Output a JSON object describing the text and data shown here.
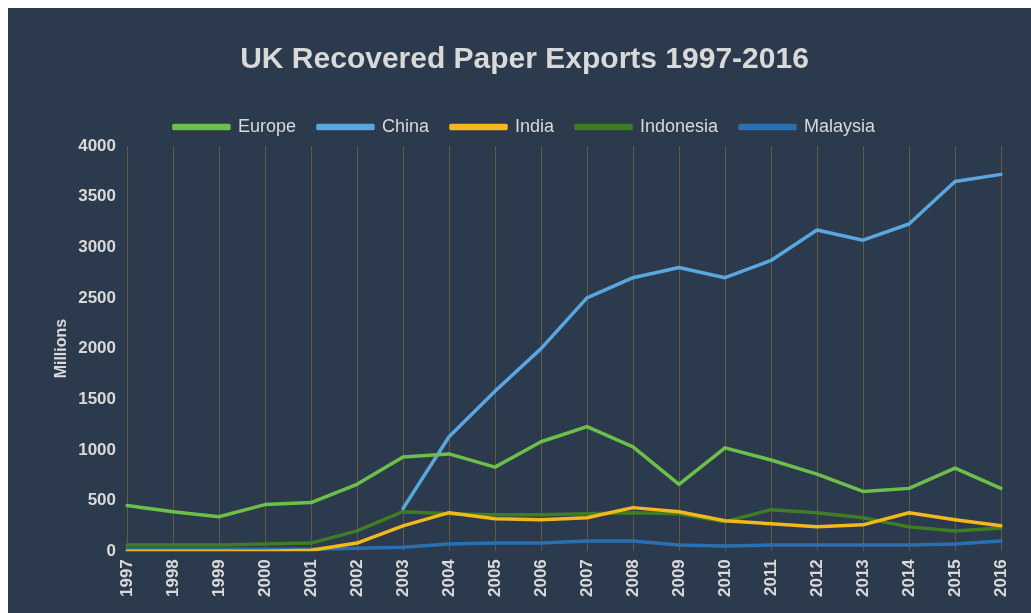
{
  "chart_data": {
    "type": "line",
    "title": "UK Recovered Paper Exports 1997-2016",
    "ylabel": "Millions",
    "categories": [
      "1997",
      "1998",
      "1999",
      "2000",
      "2001",
      "2002",
      "2003",
      "2004",
      "2005",
      "2006",
      "2007",
      "2008",
      "2009",
      "2010",
      "2011",
      "2012",
      "2013",
      "2014",
      "2015",
      "2016"
    ],
    "series": [
      {
        "name": "Europe",
        "color": "#6cc04a",
        "values": [
          450,
          390,
          340,
          460,
          480,
          660,
          930,
          960,
          830,
          1080,
          1230,
          1030,
          660,
          1020,
          900,
          760,
          590,
          620,
          820,
          620
        ]
      },
      {
        "name": "China",
        "color": "#5aa6de",
        "values": [
          null,
          null,
          null,
          null,
          null,
          null,
          420,
          1130,
          1580,
          2000,
          2500,
          2700,
          2800,
          2700,
          2870,
          3170,
          3070,
          3230,
          3650,
          3720
        ]
      },
      {
        "name": "India",
        "color": "#f2b81c",
        "values": [
          0,
          0,
          0,
          0,
          10,
          80,
          250,
          380,
          320,
          310,
          330,
          430,
          390,
          300,
          270,
          240,
          260,
          380,
          310,
          250
        ]
      },
      {
        "name": "Indonesia",
        "color": "#3e7d23",
        "values": [
          60,
          60,
          60,
          70,
          80,
          200,
          390,
          370,
          360,
          360,
          370,
          380,
          370,
          290,
          410,
          380,
          330,
          240,
          200,
          230
        ]
      },
      {
        "name": "Malaysia",
        "color": "#2a6fb0",
        "values": [
          20,
          20,
          20,
          20,
          20,
          30,
          40,
          70,
          80,
          80,
          100,
          100,
          60,
          50,
          60,
          60,
          60,
          60,
          70,
          100
        ]
      }
    ],
    "ylim": [
      0,
      4000
    ],
    "yticks": [
      0,
      500,
      1000,
      1500,
      2000,
      2500,
      3000,
      3500,
      4000
    ],
    "grid": "x",
    "legend": "top",
    "marker": "none",
    "line_style": "solid"
  }
}
